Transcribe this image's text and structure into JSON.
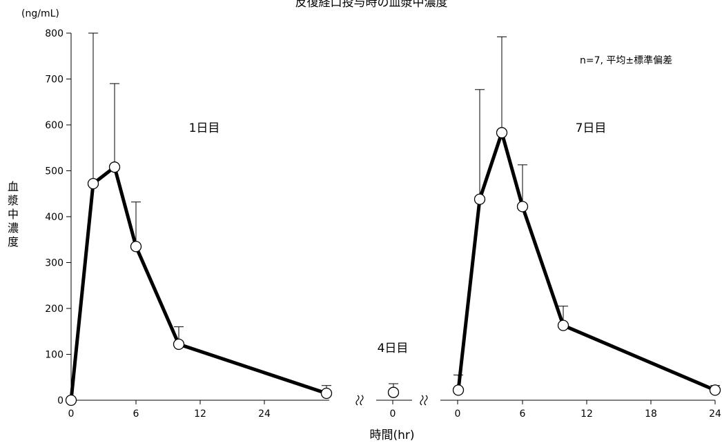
{
  "chart_data": {
    "type": "line",
    "title": "反復経口投与時の血漿中濃度",
    "y_unit": "(ng/mL)",
    "ylabel_chars": [
      "血",
      "漿",
      "中",
      "濃",
      "度"
    ],
    "xlabel": "時間(hr)",
    "ylim": [
      0,
      800
    ],
    "y_ticks": [
      "0",
      "100",
      "200",
      "300",
      "400",
      "500",
      "600",
      "700",
      "800"
    ],
    "legend_note": "n=7, 平均±標準偏差",
    "segments": [
      {
        "label": "1日目",
        "x": [
          0,
          2,
          4,
          6,
          10,
          24
        ],
        "mean": [
          0,
          472,
          508,
          335,
          122,
          15
        ],
        "sd_upper": [
          0,
          800,
          690,
          432,
          160,
          32
        ],
        "x_tick_labels": [
          "0",
          "6",
          "12",
          "24"
        ]
      },
      {
        "label": "4日目",
        "x": [
          0
        ],
        "mean": [
          17
        ],
        "sd_upper": [
          36
        ],
        "x_tick_labels": [
          "0"
        ]
      },
      {
        "label": "7日目",
        "x": [
          0,
          2,
          4,
          6,
          10,
          24
        ],
        "mean": [
          22,
          438,
          583,
          422,
          163,
          22
        ],
        "sd_upper": [
          55,
          677,
          792,
          513,
          205,
          32
        ],
        "x_tick_labels": [
          "0",
          "6",
          "12",
          "18",
          "24"
        ]
      }
    ],
    "grid": false
  }
}
